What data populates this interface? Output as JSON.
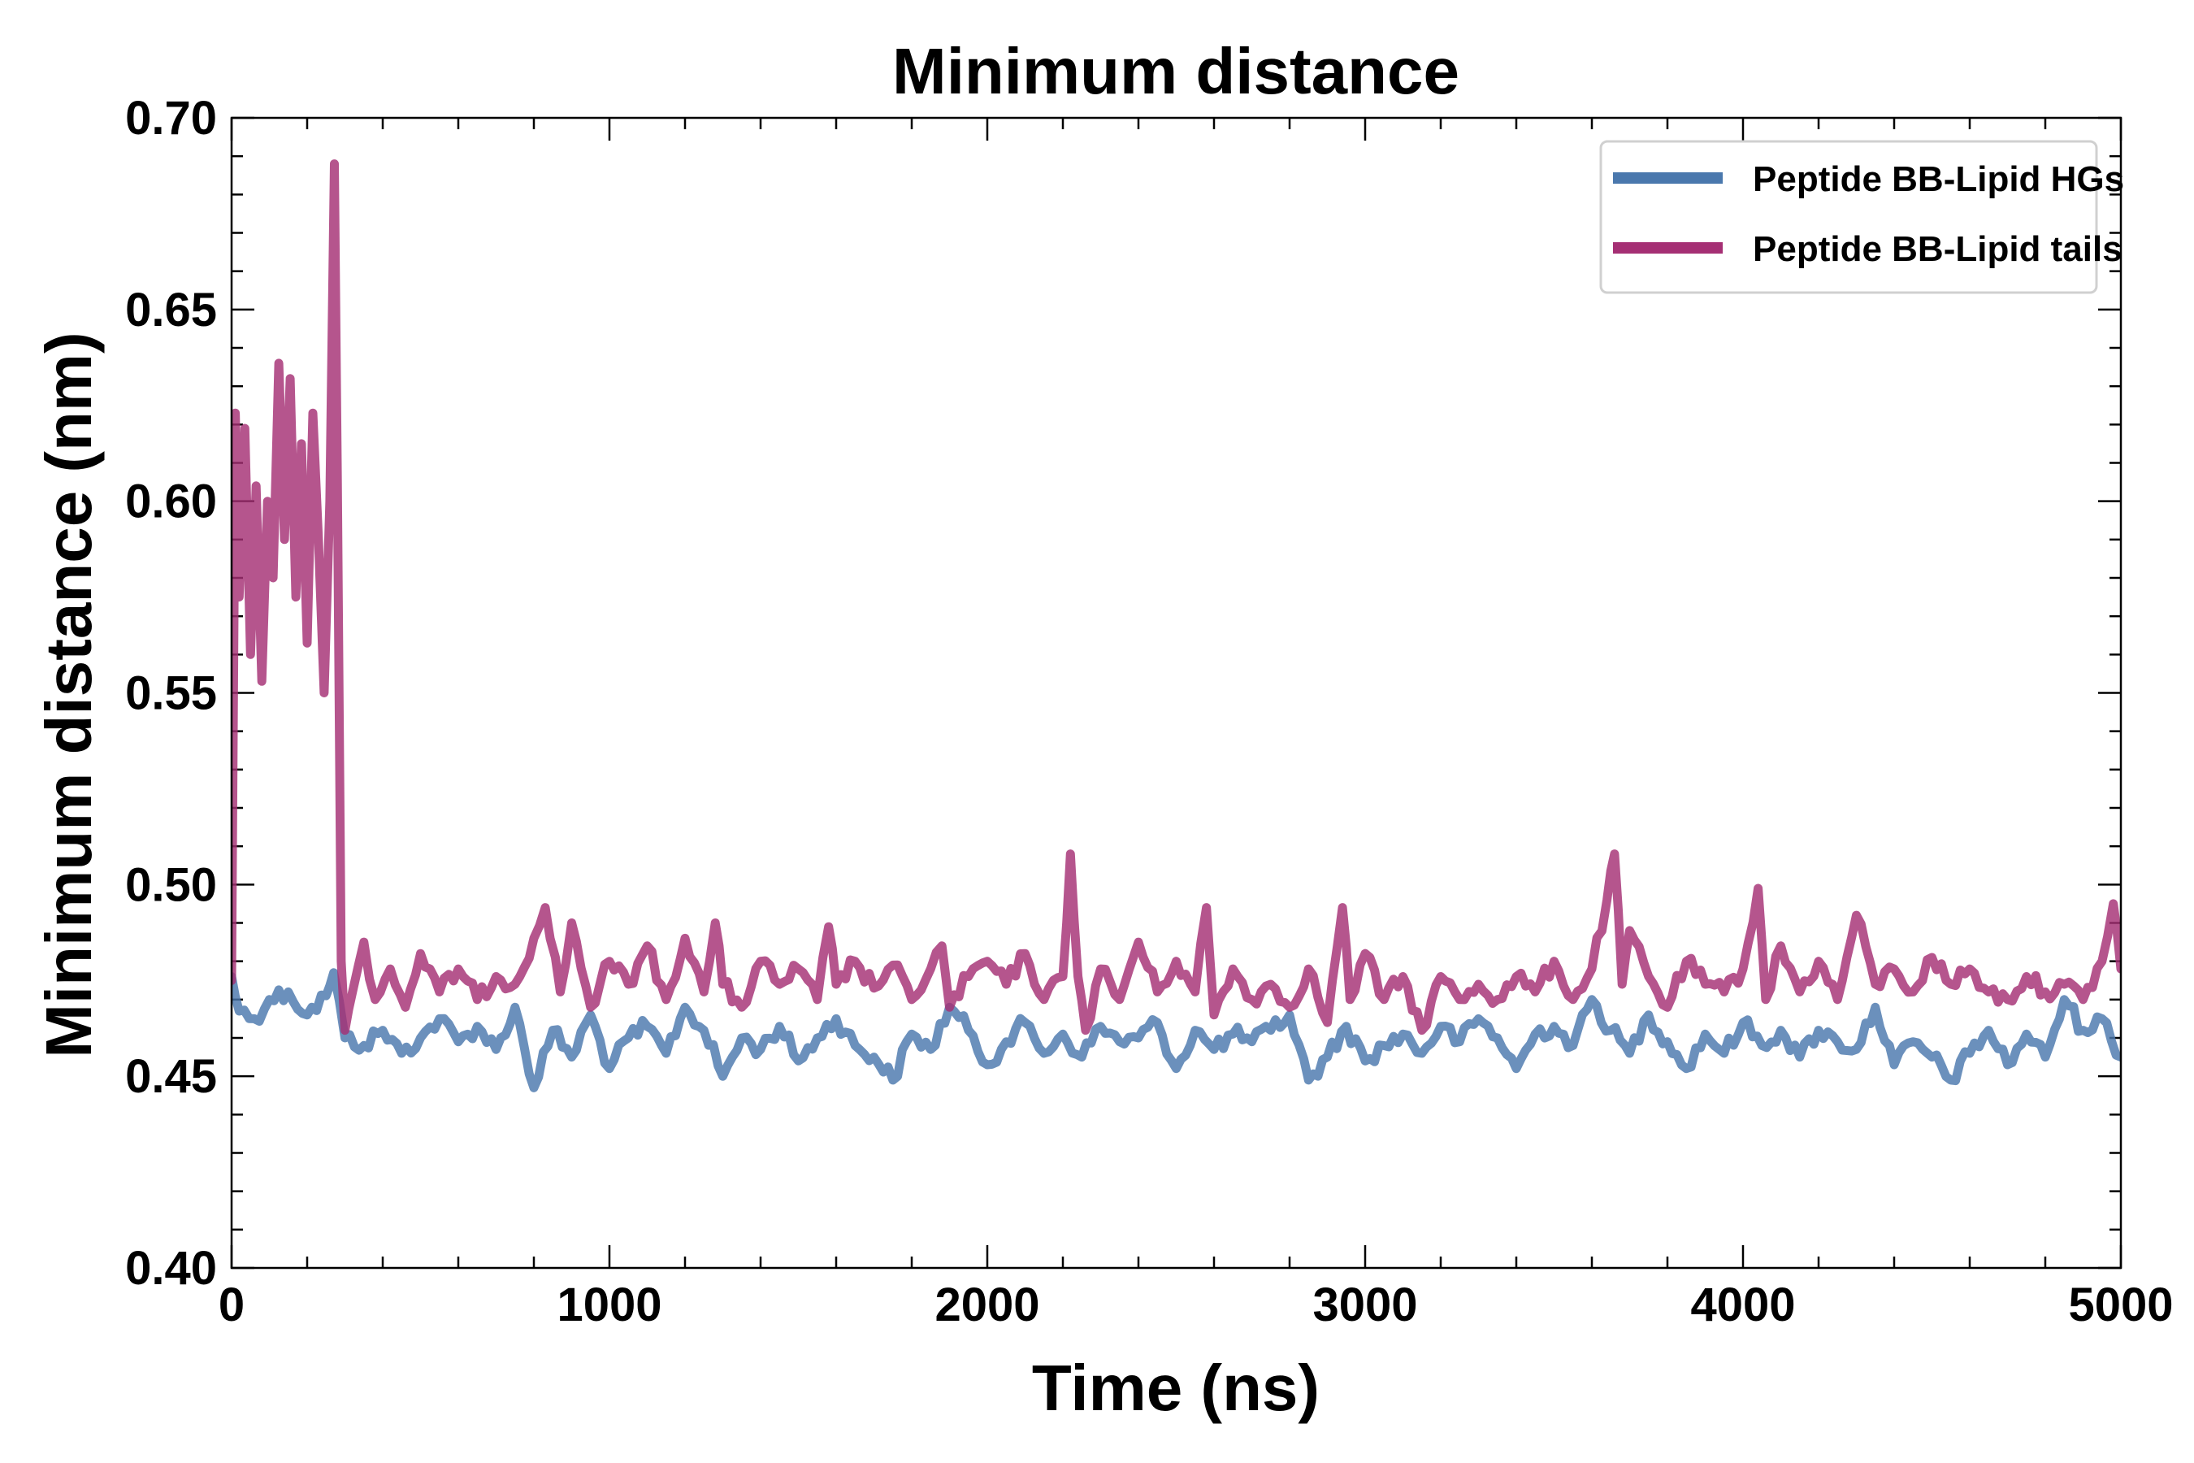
{
  "chart_data": {
    "type": "line",
    "title": "Minimum distance",
    "xlabel": "Time (ns)",
    "ylabel": "Minimum distance (nm)",
    "xlim": [
      0,
      5000
    ],
    "ylim": [
      0.4,
      0.7
    ],
    "xticks": [
      "0",
      "1000",
      "2000",
      "3000",
      "4000",
      "5000"
    ],
    "yticks": [
      "0.40",
      "0.45",
      "0.50",
      "0.55",
      "0.60",
      "0.65",
      "0.70"
    ],
    "grid": false,
    "legend_position": "top-right",
    "series": [
      {
        "name": "Peptide BB-Lipid HGs",
        "color": "#4a78ad",
        "x": [
          0,
          20,
          60,
          100,
          150,
          200,
          250,
          270,
          300,
          350,
          400,
          450,
          500,
          550,
          600,
          650,
          700,
          750,
          800,
          850,
          900,
          950,
          1000,
          1050,
          1100,
          1150,
          1200,
          1250,
          1300,
          1350,
          1400,
          1450,
          1500,
          1550,
          1600,
          1650,
          1700,
          1750,
          1800,
          1850,
          1900,
          1950,
          2000,
          2050,
          2100,
          2150,
          2200,
          2250,
          2300,
          2350,
          2400,
          2450,
          2500,
          2550,
          2600,
          2650,
          2700,
          2750,
          2800,
          2850,
          2900,
          2950,
          3000,
          3050,
          3100,
          3150,
          3200,
          3250,
          3300,
          3350,
          3400,
          3450,
          3500,
          3550,
          3600,
          3650,
          3700,
          3750,
          3800,
          3850,
          3900,
          3950,
          4000,
          4050,
          4100,
          4150,
          4200,
          4250,
          4300,
          4350,
          4400,
          4450,
          4500,
          4550,
          4600,
          4650,
          4700,
          4750,
          4800,
          4850,
          4900,
          4950,
          5000
        ],
        "values": [
          0.476,
          0.467,
          0.465,
          0.47,
          0.472,
          0.466,
          0.471,
          0.477,
          0.46,
          0.458,
          0.462,
          0.456,
          0.46,
          0.465,
          0.459,
          0.463,
          0.457,
          0.468,
          0.447,
          0.462,
          0.455,
          0.466,
          0.452,
          0.46,
          0.463,
          0.456,
          0.468,
          0.462,
          0.45,
          0.46,
          0.457,
          0.463,
          0.454,
          0.46,
          0.465,
          0.458,
          0.455,
          0.449,
          0.461,
          0.457,
          0.468,
          0.462,
          0.453,
          0.459,
          0.464,
          0.456,
          0.461,
          0.455,
          0.463,
          0.459,
          0.46,
          0.464,
          0.452,
          0.462,
          0.457,
          0.461,
          0.459,
          0.462,
          0.466,
          0.449,
          0.455,
          0.463,
          0.454,
          0.458,
          0.461,
          0.456,
          0.463,
          0.459,
          0.465,
          0.46,
          0.452,
          0.461,
          0.463,
          0.458,
          0.47,
          0.462,
          0.456,
          0.466,
          0.459,
          0.452,
          0.461,
          0.456,
          0.464,
          0.458,
          0.462,
          0.455,
          0.462,
          0.459,
          0.457,
          0.468,
          0.453,
          0.459,
          0.455,
          0.449,
          0.456,
          0.462,
          0.453,
          0.461,
          0.455,
          0.47,
          0.462,
          0.465,
          0.455
        ]
      },
      {
        "name": "Peptide BB-Lipid tails",
        "color": "#a52f74",
        "x": [
          0,
          10,
          20,
          35,
          50,
          65,
          80,
          95,
          110,
          125,
          140,
          155,
          170,
          185,
          200,
          215,
          230,
          245,
          260,
          272,
          280,
          290,
          300,
          320,
          350,
          380,
          420,
          460,
          500,
          550,
          600,
          650,
          700,
          750,
          800,
          830,
          870,
          900,
          950,
          1000,
          1050,
          1100,
          1150,
          1200,
          1250,
          1280,
          1300,
          1350,
          1400,
          1450,
          1500,
          1550,
          1580,
          1600,
          1650,
          1700,
          1750,
          1800,
          1850,
          1880,
          1900,
          1950,
          2000,
          2050,
          2100,
          2150,
          2200,
          2220,
          2240,
          2260,
          2300,
          2350,
          2400,
          2450,
          2500,
          2550,
          2580,
          2600,
          2650,
          2700,
          2750,
          2800,
          2850,
          2900,
          2940,
          2960,
          3000,
          3050,
          3100,
          3150,
          3200,
          3250,
          3300,
          3350,
          3400,
          3450,
          3500,
          3550,
          3600,
          3640,
          3660,
          3680,
          3700,
          3750,
          3800,
          3850,
          3900,
          3950,
          4000,
          4040,
          4060,
          4100,
          4150,
          4200,
          4250,
          4300,
          4350,
          4400,
          4450,
          4500,
          4550,
          4600,
          4650,
          4700,
          4750,
          4800,
          4850,
          4900,
          4950,
          4980,
          5000
        ],
        "values": [
          0.475,
          0.623,
          0.575,
          0.619,
          0.56,
          0.604,
          0.553,
          0.6,
          0.58,
          0.636,
          0.59,
          0.632,
          0.575,
          0.615,
          0.563,
          0.623,
          0.59,
          0.55,
          0.6,
          0.688,
          0.605,
          0.48,
          0.462,
          0.472,
          0.485,
          0.47,
          0.478,
          0.468,
          0.482,
          0.472,
          0.478,
          0.47,
          0.476,
          0.474,
          0.486,
          0.494,
          0.472,
          0.49,
          0.468,
          0.48,
          0.474,
          0.484,
          0.47,
          0.486,
          0.472,
          0.49,
          0.474,
          0.468,
          0.48,
          0.474,
          0.478,
          0.47,
          0.489,
          0.474,
          0.48,
          0.473,
          0.479,
          0.47,
          0.478,
          0.484,
          0.468,
          0.476,
          0.48,
          0.474,
          0.482,
          0.47,
          0.476,
          0.508,
          0.476,
          0.462,
          0.478,
          0.47,
          0.485,
          0.472,
          0.48,
          0.472,
          0.494,
          0.466,
          0.478,
          0.47,
          0.474,
          0.468,
          0.478,
          0.464,
          0.494,
          0.47,
          0.482,
          0.47,
          0.476,
          0.462,
          0.476,
          0.47,
          0.474,
          0.47,
          0.476,
          0.472,
          0.48,
          0.47,
          0.478,
          0.496,
          0.508,
          0.474,
          0.488,
          0.476,
          0.468,
          0.48,
          0.474,
          0.472,
          0.478,
          0.499,
          0.47,
          0.484,
          0.472,
          0.48,
          0.47,
          0.492,
          0.474,
          0.478,
          0.472,
          0.481,
          0.474,
          0.478,
          0.472,
          0.47,
          0.476,
          0.472,
          0.474,
          0.47,
          0.48,
          0.495,
          0.478
        ]
      }
    ]
  }
}
